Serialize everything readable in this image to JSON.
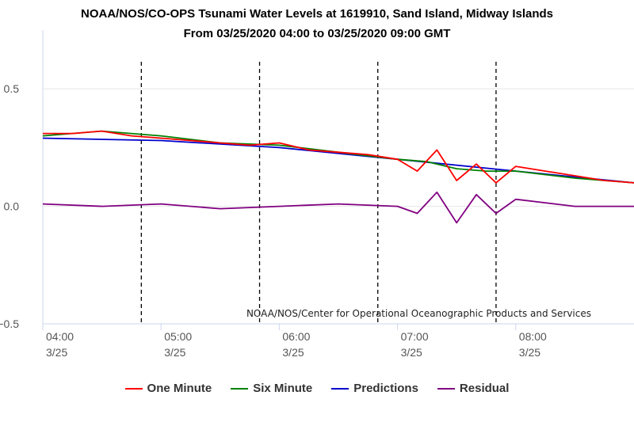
{
  "chart_data": {
    "type": "line",
    "title": "NOAA/NOS/CO-OPS Tsunami Water Levels at 1619910, Sand Island, Midway Islands",
    "subtitle": "From 03/25/2020 04:00 to 03/25/2020 09:00 GMT",
    "credit": "NOAA/NOS/Center for Operational Oceanographic Products and Services",
    "x_ticks": [
      {
        "time": "04:00",
        "date": "3/25"
      },
      {
        "time": "05:00",
        "date": "3/25"
      },
      {
        "time": "06:00",
        "date": "3/25"
      },
      {
        "time": "07:00",
        "date": "3/25"
      },
      {
        "time": "08:00",
        "date": "3/25"
      }
    ],
    "x_range": [
      "03/25/2020 04:00",
      "03/25/2020 09:00"
    ],
    "y_ticks": [
      "0.5",
      "0.0",
      "−0.5"
    ],
    "y_range": [
      -0.5,
      0.5
    ],
    "grid": true,
    "dashed_vertical_markers": [
      "04:50",
      "05:50",
      "06:50",
      "07:50"
    ],
    "legend_position": "bottom",
    "series": [
      {
        "name": "One Minute",
        "color": "#ff0000",
        "x": [
          "04:00",
          "04:15",
          "04:30",
          "04:45",
          "05:00",
          "05:15",
          "05:30",
          "05:45",
          "06:00",
          "06:15",
          "06:30",
          "06:45",
          "07:00",
          "07:10",
          "07:20",
          "07:30",
          "07:40",
          "07:50",
          "08:00",
          "08:15",
          "08:30",
          "08:45",
          "09:00"
        ],
        "y": [
          0.31,
          0.31,
          0.32,
          0.3,
          0.29,
          0.28,
          0.27,
          0.26,
          0.27,
          0.24,
          0.23,
          0.22,
          0.2,
          0.15,
          0.24,
          0.11,
          0.18,
          0.1,
          0.17,
          0.15,
          0.13,
          0.11,
          0.1
        ]
      },
      {
        "name": "Six Minute",
        "color": "#008000",
        "x": [
          "04:00",
          "04:30",
          "05:00",
          "05:30",
          "06:00",
          "06:30",
          "07:00",
          "07:15",
          "07:30",
          "07:45",
          "08:00",
          "08:30",
          "09:00"
        ],
        "y": [
          0.3,
          0.32,
          0.3,
          0.27,
          0.26,
          0.23,
          0.2,
          0.19,
          0.16,
          0.15,
          0.15,
          0.12,
          0.1
        ]
      },
      {
        "name": "Predictions",
        "color": "#0000cc",
        "x": [
          "04:00",
          "05:00",
          "06:00",
          "07:00",
          "08:00",
          "09:00"
        ],
        "y": [
          0.29,
          0.28,
          0.25,
          0.2,
          0.15,
          0.1
        ]
      },
      {
        "name": "Residual",
        "color": "#800080",
        "x": [
          "04:00",
          "04:30",
          "05:00",
          "05:30",
          "06:00",
          "06:30",
          "07:00",
          "07:10",
          "07:20",
          "07:30",
          "07:40",
          "07:50",
          "08:00",
          "08:30",
          "09:00"
        ],
        "y": [
          0.01,
          0.0,
          0.01,
          -0.01,
          0.0,
          0.01,
          0.0,
          -0.03,
          0.06,
          -0.07,
          0.05,
          -0.03,
          0.03,
          0.0,
          0.0
        ]
      }
    ]
  }
}
